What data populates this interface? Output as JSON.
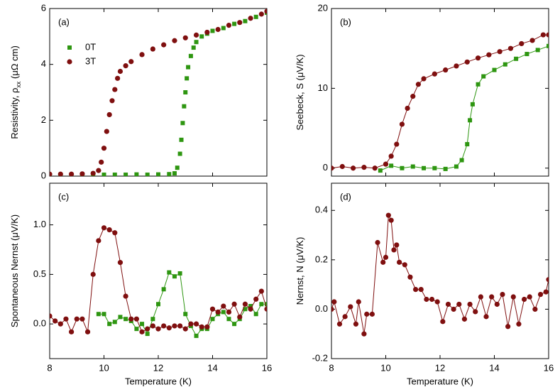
{
  "chart_data": [
    {
      "type": "scatter",
      "panel_label": "(a)",
      "ylabel": [
        "Resistivity, ρ",
        "xx",
        " (μΩ cm)"
      ],
      "connect": false,
      "legend": "upper left",
      "xlim": [
        8,
        16
      ],
      "xticks": [
        8,
        10,
        12,
        14,
        16
      ],
      "ylim": [
        0,
        6
      ],
      "yticks": [
        0,
        2,
        4,
        6
      ],
      "series": [
        {
          "name": "0T",
          "color": "#2e9611",
          "marker": "square",
          "x": [
            8.0,
            8.4,
            8.8,
            9.2,
            9.6,
            10.0,
            10.4,
            10.8,
            11.2,
            11.6,
            12.0,
            12.4,
            12.6,
            12.7,
            12.8,
            12.85,
            12.9,
            12.95,
            13.0,
            13.05,
            13.1,
            13.2,
            13.3,
            13.4,
            13.6,
            13.8,
            14.0,
            14.4,
            14.8,
            15.2,
            15.6,
            16.0
          ],
          "values": [
            0.05,
            0.05,
            0.05,
            0.05,
            0.06,
            0.05,
            0.05,
            0.05,
            0.06,
            0.05,
            0.06,
            0.07,
            0.1,
            0.3,
            0.8,
            1.3,
            1.9,
            2.5,
            3.0,
            3.5,
            3.9,
            4.3,
            4.6,
            4.8,
            5.0,
            5.1,
            5.2,
            5.3,
            5.45,
            5.55,
            5.7,
            5.85
          ]
        },
        {
          "name": "3T",
          "color": "#7f0f0f",
          "marker": "circle",
          "x": [
            8.0,
            8.4,
            8.8,
            9.2,
            9.6,
            9.8,
            9.9,
            10.0,
            10.1,
            10.2,
            10.3,
            10.4,
            10.5,
            10.6,
            10.8,
            11.0,
            11.4,
            11.8,
            12.2,
            12.6,
            13.0,
            13.4,
            13.8,
            14.2,
            14.6,
            15.0,
            15.4,
            15.8,
            16.0
          ],
          "values": [
            0.07,
            0.07,
            0.07,
            0.08,
            0.1,
            0.2,
            0.5,
            1.0,
            1.6,
            2.2,
            2.7,
            3.1,
            3.5,
            3.75,
            3.95,
            4.1,
            4.35,
            4.55,
            4.7,
            4.85,
            4.95,
            5.05,
            5.15,
            5.25,
            5.4,
            5.5,
            5.65,
            5.8,
            5.9
          ]
        }
      ]
    },
    {
      "type": "scatter",
      "panel_label": "(b)",
      "ylabel": [
        "Seebeck, S (μV/K)"
      ],
      "connect": true,
      "xlim": [
        8,
        16
      ],
      "xticks": [
        8,
        10,
        12,
        14,
        16
      ],
      "ylim": [
        -1,
        20
      ],
      "yticks": [
        0,
        10,
        20
      ],
      "series": [
        {
          "name": "0T",
          "color": "#2e9611",
          "marker": "square",
          "x": [
            9.8,
            10.2,
            10.6,
            11.0,
            11.4,
            11.8,
            12.2,
            12.6,
            12.8,
            13.0,
            13.1,
            13.2,
            13.4,
            13.6,
            14.0,
            14.4,
            14.8,
            15.2,
            15.6,
            16.0
          ],
          "values": [
            -0.3,
            0.3,
            0.0,
            0.2,
            0.0,
            0.0,
            -0.1,
            0.2,
            1.0,
            3.0,
            6.0,
            8.0,
            10.5,
            11.5,
            12.3,
            13.0,
            13.7,
            14.3,
            14.8,
            15.3
          ]
        },
        {
          "name": "3T",
          "color": "#7f0f0f",
          "marker": "circle",
          "x": [
            8.0,
            8.4,
            8.8,
            9.2,
            9.6,
            10.0,
            10.2,
            10.4,
            10.6,
            10.8,
            11.0,
            11.2,
            11.4,
            11.8,
            12.2,
            12.6,
            13.0,
            13.4,
            13.8,
            14.2,
            14.6,
            15.0,
            15.4,
            15.8,
            16.0
          ],
          "values": [
            0.0,
            0.2,
            0.0,
            0.1,
            0.0,
            0.5,
            1.5,
            3.0,
            5.5,
            7.5,
            9.0,
            10.5,
            11.2,
            11.8,
            12.3,
            12.8,
            13.3,
            13.8,
            14.2,
            14.6,
            15.0,
            15.6,
            16.0,
            16.7,
            16.7
          ]
        }
      ]
    },
    {
      "type": "scatter",
      "panel_label": "(c)",
      "ylabel": [
        "Spontaneous Nernst (μV/K)"
      ],
      "xlabel": "Temperature (K)",
      "connect": true,
      "xlim": [
        8,
        16
      ],
      "xticks": [
        8,
        10,
        12,
        14,
        16
      ],
      "ylim": [
        -0.35,
        1.42
      ],
      "yticks": [
        {
          "value": 0,
          "label": "0.0"
        },
        0.5,
        {
          "value": 1,
          "label": "1.0"
        }
      ],
      "series": [
        {
          "name": "0T",
          "color": "#2e9611",
          "marker": "square",
          "x": [
            9.8,
            10.0,
            10.2,
            10.4,
            10.6,
            10.8,
            11.0,
            11.2,
            11.4,
            11.6,
            11.8,
            12.0,
            12.2,
            12.4,
            12.6,
            12.8,
            13.0,
            13.2,
            13.4,
            13.6,
            13.8,
            14.0,
            14.2,
            14.4,
            14.6,
            14.8,
            15.0,
            15.2,
            15.4,
            15.6,
            15.8,
            16.0
          ],
          "values": [
            0.1,
            0.1,
            0.0,
            0.02,
            0.07,
            0.05,
            0.03,
            -0.05,
            0.0,
            -0.1,
            0.05,
            0.2,
            0.35,
            0.52,
            0.48,
            0.51,
            0.1,
            -0.02,
            -0.12,
            -0.05,
            -0.05,
            0.05,
            0.1,
            0.12,
            0.05,
            0.0,
            0.05,
            0.15,
            0.18,
            0.1,
            0.2,
            0.2
          ]
        },
        {
          "name": "3T",
          "color": "#7f0f0f",
          "marker": "circle",
          "x": [
            8.0,
            8.2,
            8.4,
            8.6,
            8.8,
            9.0,
            9.2,
            9.4,
            9.6,
            9.8,
            10.0,
            10.2,
            10.4,
            10.6,
            10.8,
            11.0,
            11.2,
            11.4,
            11.6,
            11.8,
            12.0,
            12.2,
            12.4,
            12.6,
            12.8,
            13.0,
            13.2,
            13.4,
            13.6,
            13.8,
            14.0,
            14.2,
            14.4,
            14.6,
            14.8,
            15.0,
            15.2,
            15.4,
            15.6,
            15.8,
            16.0
          ],
          "values": [
            0.08,
            0.03,
            0.0,
            0.05,
            -0.08,
            0.05,
            0.05,
            -0.08,
            0.5,
            0.84,
            0.97,
            0.95,
            0.92,
            0.62,
            0.28,
            0.05,
            0.05,
            -0.08,
            -0.05,
            -0.02,
            -0.05,
            -0.02,
            -0.04,
            -0.02,
            -0.02,
            -0.05,
            0.0,
            0.0,
            -0.03,
            -0.03,
            0.15,
            0.12,
            0.18,
            0.12,
            0.2,
            0.07,
            0.2,
            0.15,
            0.25,
            0.33,
            0.15
          ]
        }
      ]
    },
    {
      "type": "scatter",
      "panel_label": "(d)",
      "ylabel": [
        "Nernst, N (μV/K)"
      ],
      "xlabel": "Temperature (K)",
      "connect": true,
      "xlim": [
        8,
        16
      ],
      "xticks": [
        8,
        10,
        12,
        14,
        16
      ],
      "ylim": [
        -0.2,
        0.51
      ],
      "yticks": [
        -0.2,
        {
          "value": 0,
          "label": "0.0"
        },
        0.2,
        0.4
      ],
      "series": [
        {
          "name": "3T",
          "color": "#7f0f0f",
          "marker": "circle",
          "x": [
            8.0,
            8.1,
            8.3,
            8.5,
            8.7,
            8.9,
            9.0,
            9.2,
            9.3,
            9.5,
            9.7,
            9.9,
            10.0,
            10.1,
            10.2,
            10.3,
            10.4,
            10.5,
            10.7,
            10.9,
            11.1,
            11.3,
            11.5,
            11.7,
            11.9,
            12.1,
            12.3,
            12.5,
            12.7,
            12.9,
            13.1,
            13.3,
            13.5,
            13.7,
            13.9,
            14.1,
            14.3,
            14.5,
            14.7,
            14.9,
            15.1,
            15.3,
            15.5,
            15.7,
            15.9,
            16.0
          ],
          "values": [
            0.0,
            0.03,
            -0.06,
            -0.03,
            0.01,
            -0.06,
            0.03,
            -0.1,
            -0.02,
            -0.02,
            0.27,
            0.19,
            0.21,
            0.38,
            0.36,
            0.24,
            0.26,
            0.19,
            0.18,
            0.13,
            0.08,
            0.08,
            0.04,
            0.04,
            0.03,
            -0.05,
            0.02,
            0.0,
            0.02,
            -0.04,
            0.02,
            -0.01,
            0.05,
            -0.03,
            0.05,
            0.02,
            0.06,
            -0.07,
            0.05,
            -0.06,
            0.04,
            0.05,
            0.0,
            0.06,
            0.07,
            0.12
          ]
        }
      ]
    }
  ]
}
